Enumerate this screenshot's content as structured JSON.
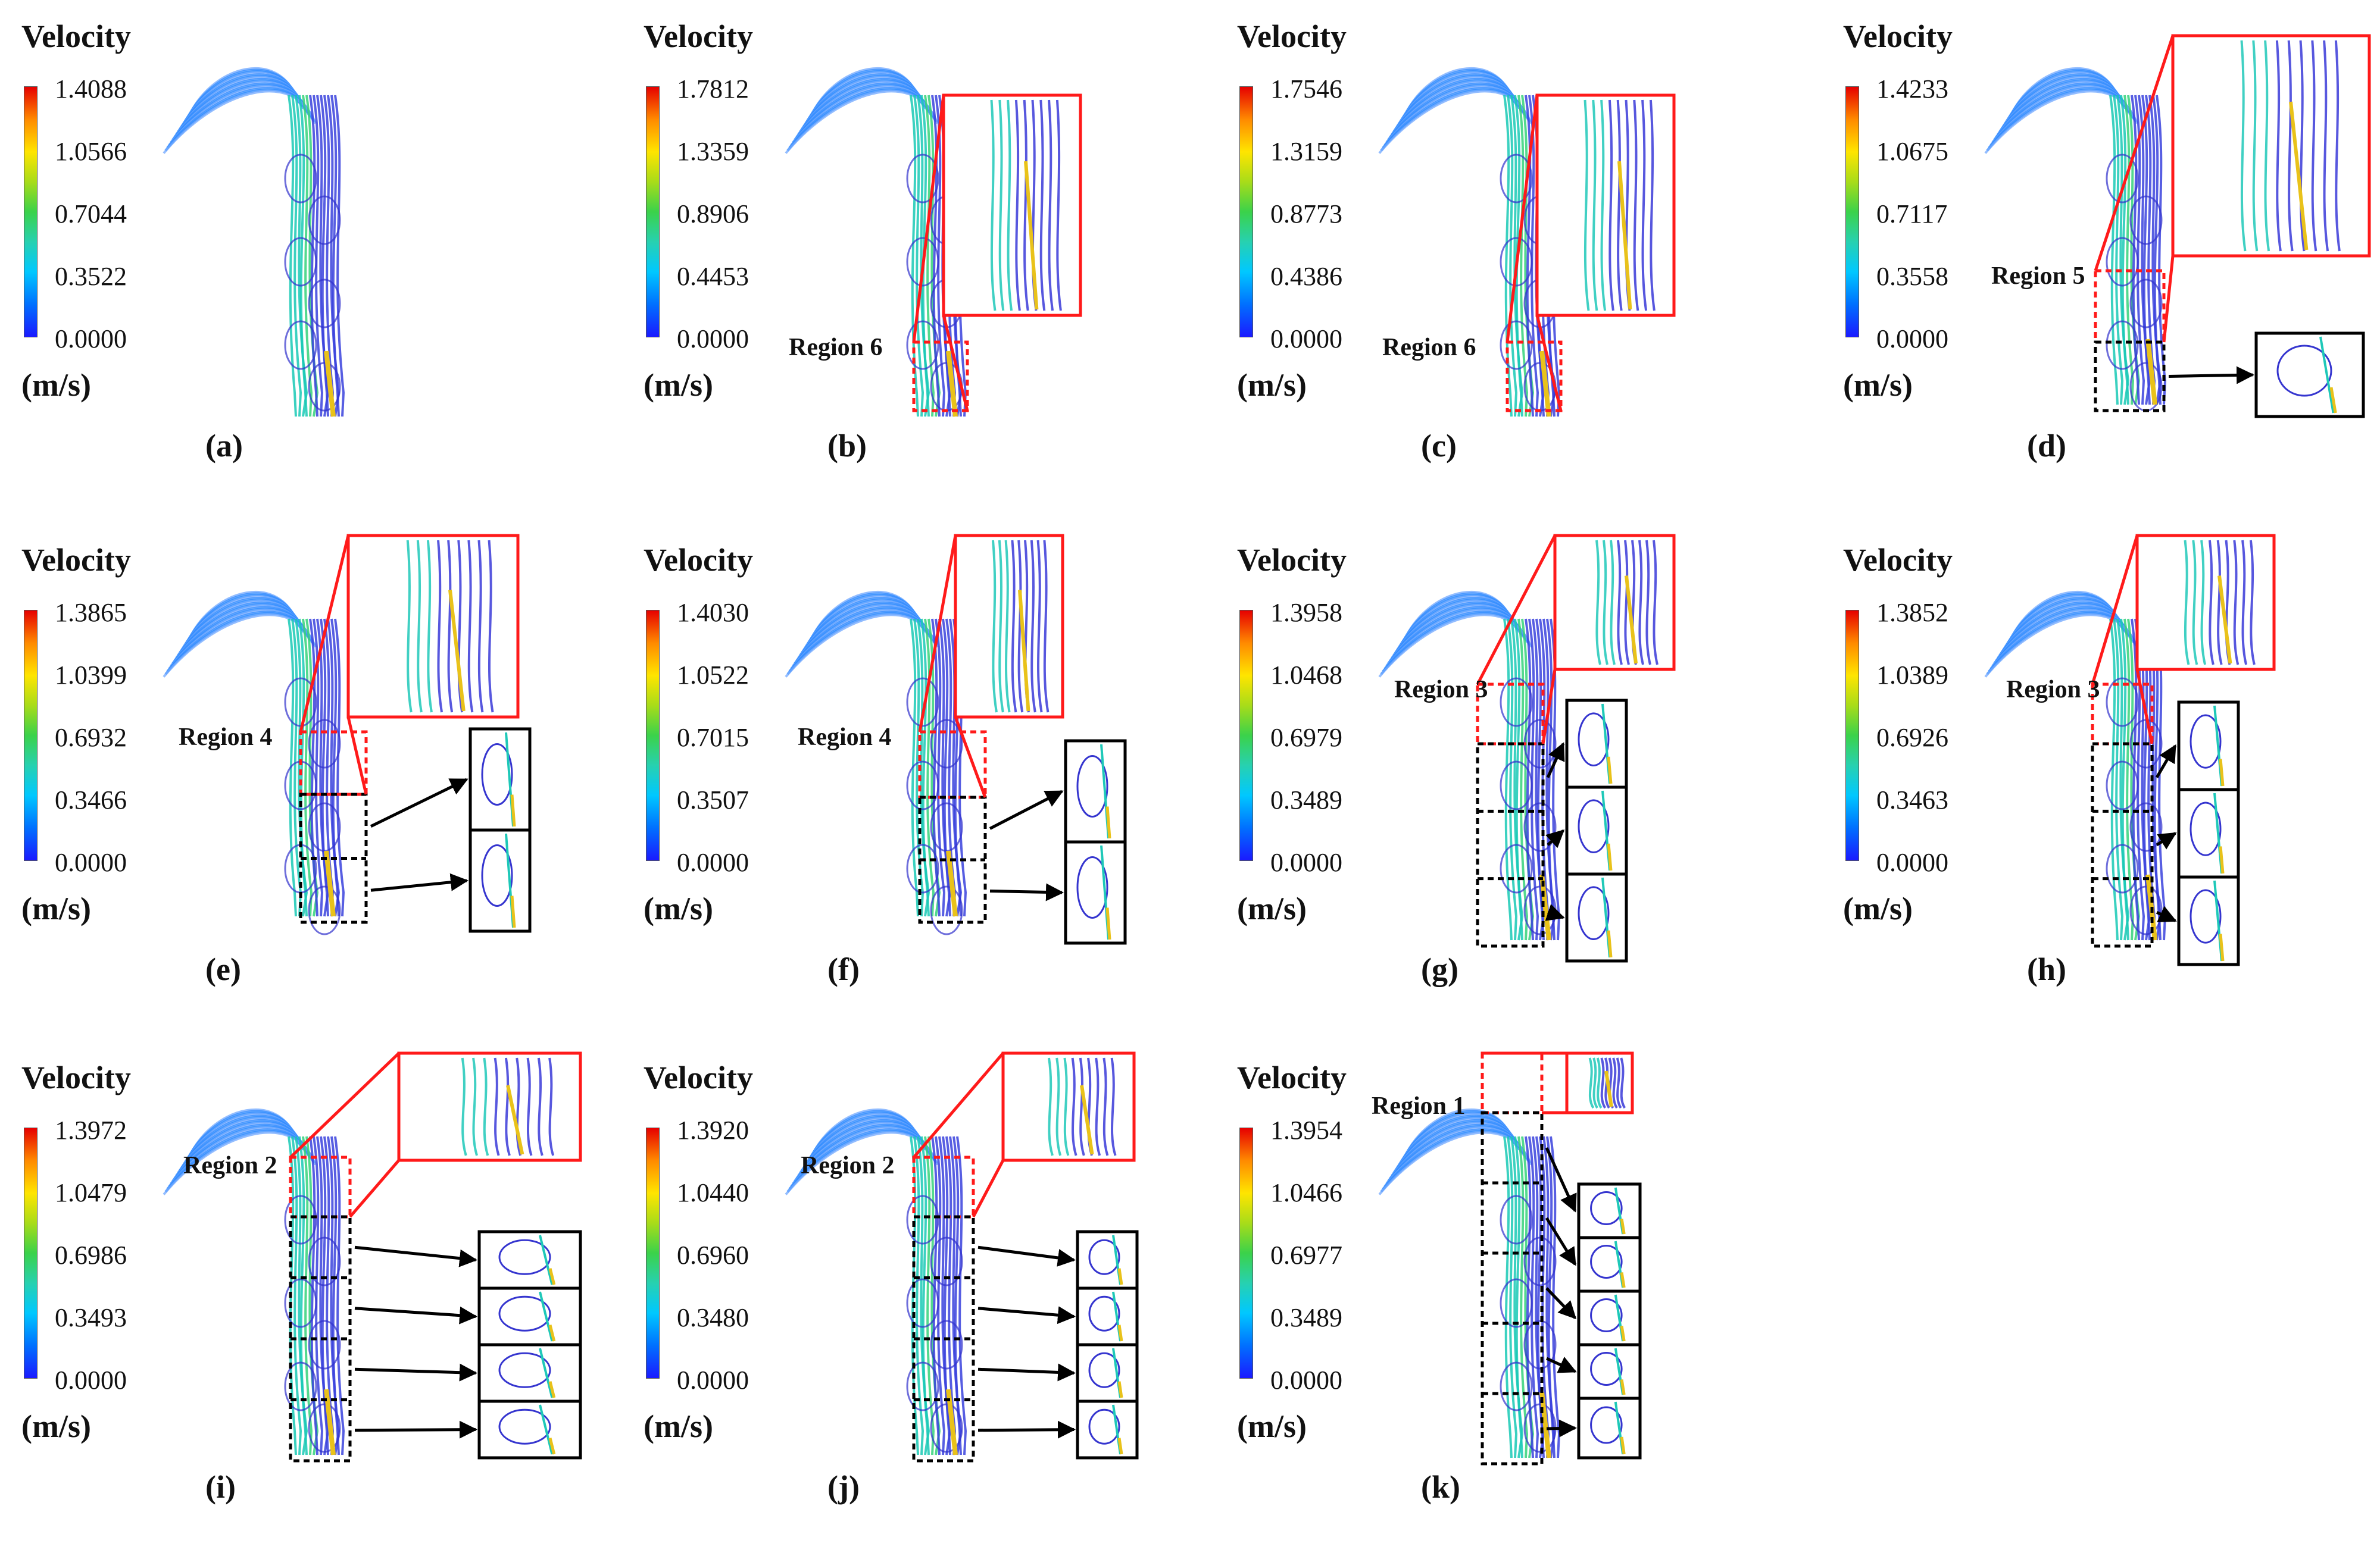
{
  "colorbar_title": "Velocity",
  "unit": "(m/s)",
  "colors": {
    "zoom_red": "#ff1a1a",
    "zoom_black": "#000000",
    "streamline_blue": "#3b3bdd",
    "streamline_cyan": "#2aa7ff"
  },
  "panels": [
    {
      "id": "a",
      "label": "(a)",
      "ticks": [
        "1.4088",
        "1.0566",
        "0.7044",
        "0.3522",
        "0.0000"
      ],
      "region": ""
    },
    {
      "id": "b",
      "label": "(b)",
      "ticks": [
        "1.7812",
        "1.3359",
        "0.8906",
        "0.4453",
        "0.0000"
      ],
      "region": "Region 6"
    },
    {
      "id": "c",
      "label": "(c)",
      "ticks": [
        "1.7546",
        "1.3159",
        "0.8773",
        "0.4386",
        "0.0000"
      ],
      "region": "Region 6"
    },
    {
      "id": "d",
      "label": "(d)",
      "ticks": [
        "1.4233",
        "1.0675",
        "0.7117",
        "0.3558",
        "0.0000"
      ],
      "region": "Region 5"
    },
    {
      "id": "e",
      "label": "(e)",
      "ticks": [
        "1.3865",
        "1.0399",
        "0.6932",
        "0.3466",
        "0.0000"
      ],
      "region": "Region 4"
    },
    {
      "id": "f",
      "label": "(f)",
      "ticks": [
        "1.4030",
        "1.0522",
        "0.7015",
        "0.3507",
        "0.0000"
      ],
      "region": "Region 4"
    },
    {
      "id": "g",
      "label": "(g)",
      "ticks": [
        "1.3958",
        "1.0468",
        "0.6979",
        "0.3489",
        "0.0000"
      ],
      "region": "Region 3"
    },
    {
      "id": "h",
      "label": "(h)",
      "ticks": [
        "1.3852",
        "1.0389",
        "0.6926",
        "0.3463",
        "0.0000"
      ],
      "region": "Region 3"
    },
    {
      "id": "i",
      "label": "(i)",
      "ticks": [
        "1.3972",
        "1.0479",
        "0.6986",
        "0.3493",
        "0.0000"
      ],
      "region": "Region 2"
    },
    {
      "id": "j",
      "label": "(j)",
      "ticks": [
        "1.3920",
        "1.0440",
        "0.6960",
        "0.3480",
        "0.0000"
      ],
      "region": "Region 2"
    },
    {
      "id": "k",
      "label": "(k)",
      "ticks": [
        "1.3954",
        "1.0466",
        "0.6977",
        "0.3489",
        "0.0000"
      ],
      "region": "Region 1"
    }
  ]
}
